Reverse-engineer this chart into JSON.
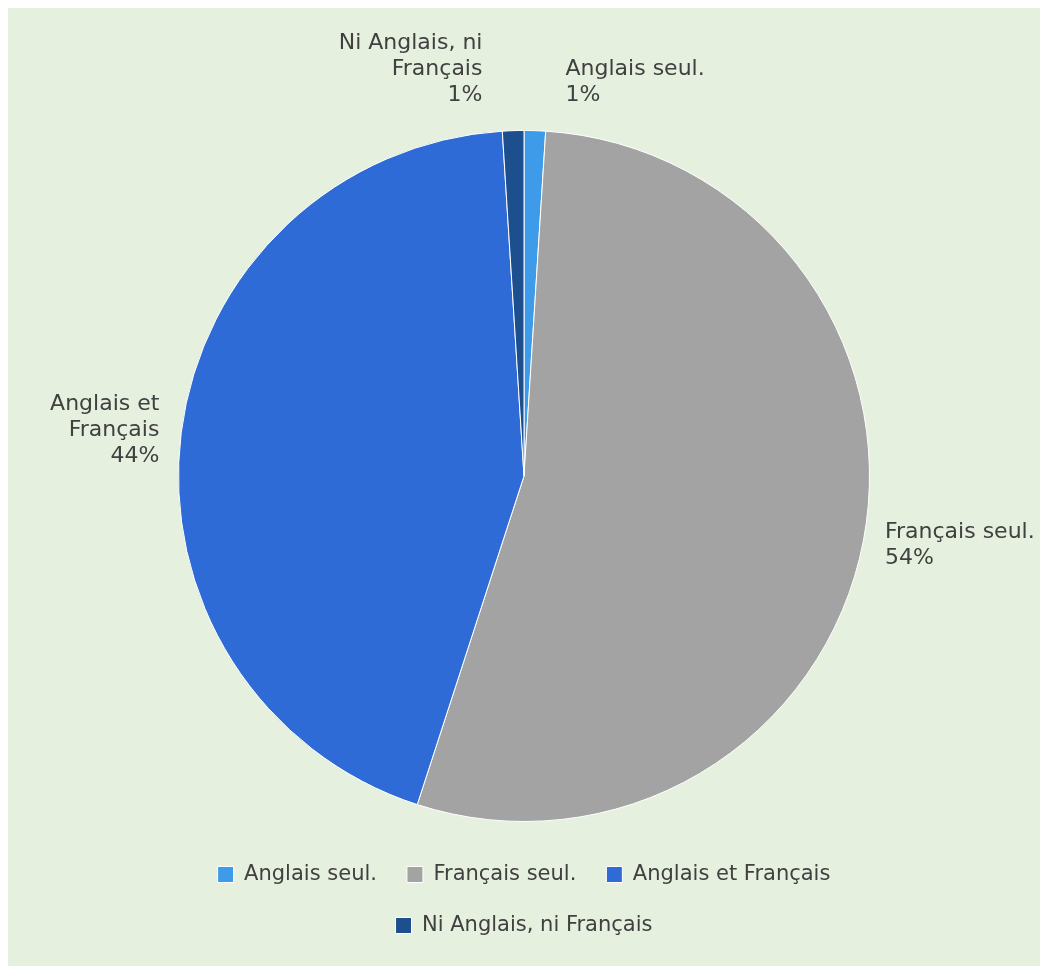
{
  "chart_data": {
    "type": "pie",
    "categories": [
      "Anglais seul.",
      "Français seul.",
      "Anglais et Français",
      "Ni Anglais, ni Français"
    ],
    "values": [
      1,
      54,
      44,
      1
    ],
    "value_labels": [
      "1%",
      "54%",
      "44%",
      "1%"
    ],
    "colors": [
      "#3d9be9",
      "#a3a3a3",
      "#2e6bd6",
      "#1d4f8f"
    ],
    "legend": "bottom"
  }
}
